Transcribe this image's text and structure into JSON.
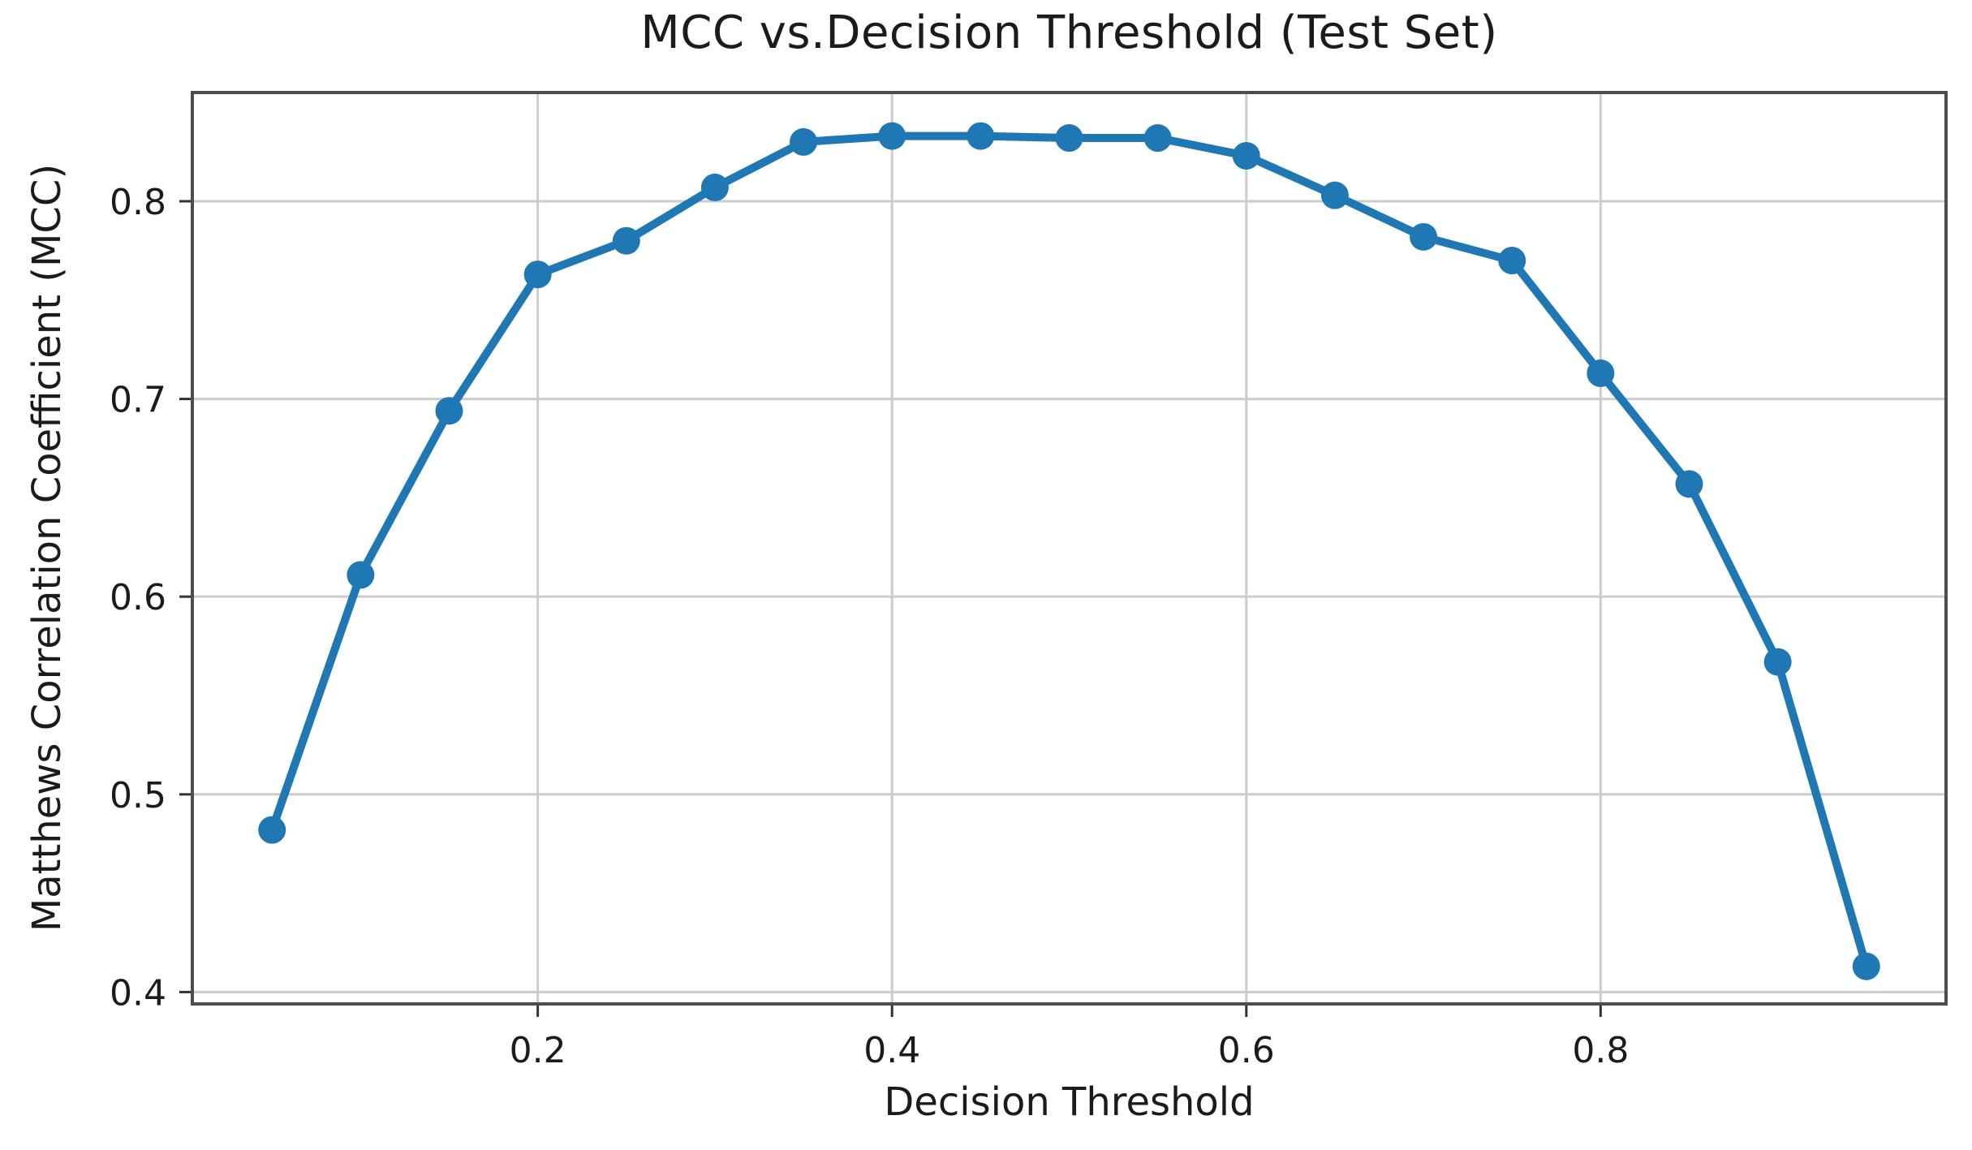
{
  "page": {
    "background_color": "#ffffff"
  },
  "chart_data": {
    "type": "line",
    "title": "MCC vs.Decision Threshold (Test Set)",
    "xlabel": "Decision Threshold",
    "ylabel": "Matthews Correlation Coefficient (MCC)",
    "x": [
      0.05,
      0.1,
      0.15,
      0.2,
      0.25,
      0.3,
      0.35,
      0.4,
      0.45,
      0.5,
      0.55,
      0.6,
      0.65,
      0.7,
      0.75,
      0.8,
      0.85,
      0.9,
      0.95
    ],
    "series": [
      {
        "name": "MCC",
        "values": [
          0.482,
          0.611,
          0.694,
          0.763,
          0.78,
          0.807,
          0.83,
          0.833,
          0.833,
          0.832,
          0.832,
          0.823,
          0.803,
          0.782,
          0.77,
          0.713,
          0.657,
          0.567,
          0.413
        ]
      }
    ],
    "xlim": [
      0.005,
      0.995
    ],
    "ylim": [
      0.394,
      0.855
    ],
    "xticks": [
      0.2,
      0.4,
      0.6,
      0.8
    ],
    "xtick_labels": [
      "0.2",
      "0.4",
      "0.6",
      "0.8"
    ],
    "yticks": [
      0.4,
      0.5,
      0.6,
      0.7,
      0.8
    ],
    "ytick_labels": [
      "0.4",
      "0.5",
      "0.6",
      "0.7",
      "0.8"
    ],
    "grid": true,
    "legend": "none",
    "marker_style": "circle",
    "line_color": "#1f77b4",
    "marker_color": "#1f77b4",
    "grid_color": "#cccccc",
    "spine_color": "#4d4d4d",
    "tick_color": "#333333",
    "text_color": "#1b1b1b"
  }
}
